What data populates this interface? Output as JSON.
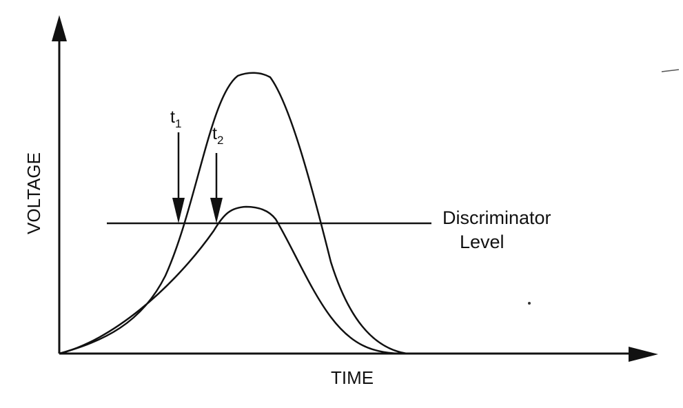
{
  "diagram": {
    "y_axis_label": "VOLTAGE",
    "x_axis_label": "TIME",
    "discriminator_label_line1": "Discriminator",
    "discriminator_label_line2": "Level",
    "t1": {
      "base": "t",
      "sub": "1"
    },
    "t2": {
      "base": "t",
      "sub": "2"
    },
    "stroke_color": "#111111",
    "background_color": "#ffffff"
  }
}
